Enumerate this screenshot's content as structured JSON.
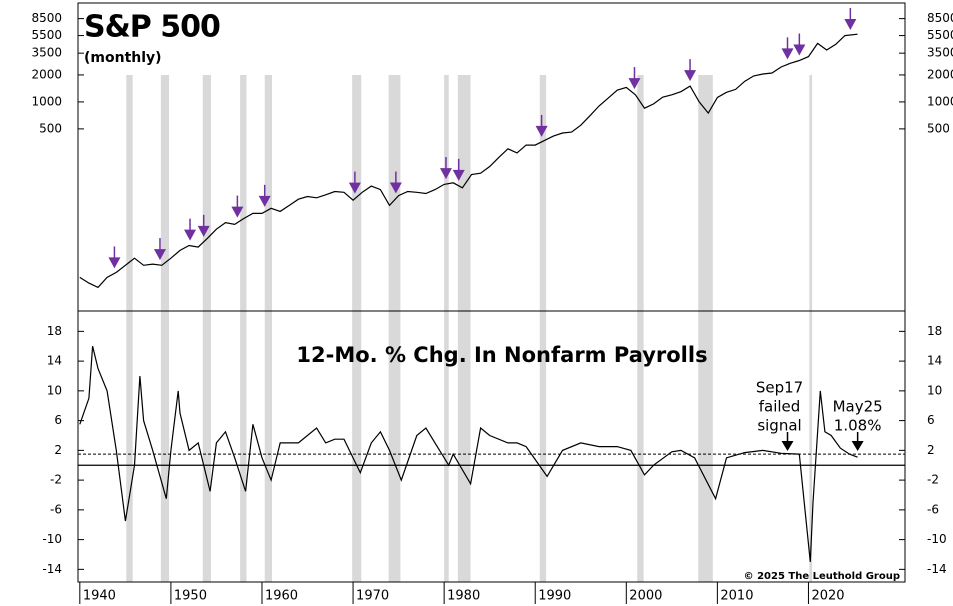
{
  "chart_data": [
    {
      "type": "line",
      "title": "S&P 500",
      "subtitle": "(monthly)",
      "log_scale": true,
      "color": "#000000",
      "x": [
        1940,
        1941,
        1942,
        1943,
        1944,
        1945,
        1946,
        1947,
        1948,
        1949,
        1950,
        1951,
        1952,
        1953,
        1954,
        1955,
        1956,
        1957,
        1958,
        1959,
        1960,
        1961,
        1962,
        1963,
        1964,
        1965,
        1966,
        1967,
        1968,
        1969,
        1970,
        1971,
        1972,
        1973,
        1974,
        1975,
        1976,
        1977,
        1978,
        1979,
        1980,
        1981,
        1982,
        1983,
        1984,
        1985,
        1986,
        1987,
        1988,
        1989,
        1990,
        1991,
        1992,
        1993,
        1994,
        1995,
        1996,
        1997,
        1998,
        1999,
        2000,
        2001,
        2002,
        2003,
        2004,
        2005,
        2006,
        2007,
        2008,
        2009,
        2010,
        2011,
        2012,
        2013,
        2014,
        2015,
        2016,
        2017,
        2018,
        2019,
        2020,
        2021,
        2022,
        2023,
        2024,
        2025.4
      ],
      "values": [
        11,
        9.5,
        8.5,
        11,
        12.5,
        15,
        18,
        15,
        15.5,
        15,
        18,
        22,
        25,
        24,
        30,
        38,
        45,
        43,
        50,
        57,
        57,
        65,
        60,
        70,
        82,
        88,
        85,
        92,
        100,
        98,
        80,
        98,
        115,
        105,
        70,
        90,
        100,
        98,
        95,
        105,
        120,
        125,
        110,
        155,
        160,
        190,
        240,
        300,
        270,
        330,
        330,
        370,
        415,
        450,
        460,
        550,
        700,
        900,
        1100,
        1350,
        1450,
        1200,
        850,
        950,
        1130,
        1200,
        1300,
        1500,
        1000,
        750,
        1120,
        1280,
        1380,
        1700,
        1950,
        2050,
        2100,
        2450,
        2700,
        2900,
        3200,
        4500,
        3800,
        4400,
        5500,
        5700
      ],
      "xlim": [
        1939.8,
        2030.6
      ],
      "ylim": [
        6,
        12700
      ],
      "yticks": [
        500,
        1000,
        2000,
        3500,
        5500,
        8500
      ],
      "signals": {
        "color": "#7030a0",
        "x": [
          1943.8,
          1948.8,
          1952.1,
          1953.6,
          1957.3,
          1960.3,
          1970.2,
          1974.7,
          1980.2,
          1981.6,
          1990.7,
          2000.9,
          2007.0,
          2017.7,
          2019.0,
          2024.6
        ]
      },
      "recessions": {
        "color": "#d9d9d9",
        "periods": [
          [
            1945.1,
            1945.8
          ],
          [
            1948.9,
            1949.8
          ],
          [
            1953.5,
            1954.4
          ],
          [
            1957.6,
            1958.3
          ],
          [
            1960.3,
            1961.1
          ],
          [
            1969.9,
            1970.9
          ],
          [
            1973.9,
            1975.2
          ],
          [
            1980.0,
            1980.5
          ],
          [
            1981.5,
            1982.9
          ],
          [
            1990.5,
            1991.2
          ],
          [
            2001.2,
            2001.9
          ],
          [
            2007.9,
            2009.5
          ],
          [
            2020.1,
            2020.4
          ]
        ]
      }
    },
    {
      "type": "line",
      "title": "12-Mo. % Chg. In Nonfarm Payrolls",
      "color": "#000000",
      "x": [
        1940,
        1941,
        1941.4,
        1942,
        1943,
        1944,
        1945,
        1946,
        1946.6,
        1947,
        1948,
        1949.5,
        1950,
        1950.8,
        1951,
        1952,
        1953,
        1954.3,
        1955,
        1956,
        1957,
        1958.2,
        1959,
        1960,
        1961,
        1962,
        1964,
        1966,
        1967,
        1968,
        1969,
        1970.8,
        1972,
        1973,
        1974,
        1975.3,
        1977,
        1978,
        1979,
        1980.5,
        1981,
        1982.9,
        1984,
        1985,
        1987,
        1988,
        1989,
        1991.3,
        1993,
        1995,
        1997,
        1999,
        2000.5,
        2002,
        2003,
        2005,
        2006,
        2007.5,
        2009.8,
        2011,
        2013,
        2015,
        2017,
        2019,
        2020.2,
        2020.5,
        2021.3,
        2021.8,
        2022.5,
        2023.5,
        2024.5,
        2025.4
      ],
      "values": [
        5.5,
        9,
        16,
        13,
        10,
        2,
        -7.5,
        0,
        12,
        6,
        2,
        -4.5,
        2,
        10,
        7,
        2,
        3,
        -3.5,
        3,
        4.5,
        1,
        -3.5,
        5.5,
        1,
        -2,
        3,
        3,
        5,
        3,
        3.5,
        3.5,
        -1,
        3,
        4.5,
        2,
        -2,
        4,
        5,
        3,
        0,
        1.5,
        -2.5,
        5,
        4,
        3,
        3,
        2.5,
        -1.5,
        2,
        3,
        2.5,
        2.5,
        2,
        -1.3,
        0,
        1.8,
        2,
        1,
        -4.5,
        1,
        1.7,
        2,
        1.6,
        1.5,
        -13,
        -5,
        10,
        4.5,
        4,
        2.3,
        1.5,
        1.08
      ],
      "xlim": [
        1939.8,
        2030.6
      ],
      "ylim": [
        -15.7,
        20.2
      ],
      "yticks": [
        18,
        14,
        10,
        6,
        2,
        -2,
        -6,
        -10,
        -14
      ],
      "xticks": [
        1940,
        1950,
        1960,
        1970,
        1980,
        1990,
        2000,
        2010,
        2020
      ],
      "threshold": 1.5,
      "annotations": [
        {
          "x": 2017.7,
          "lines": [
            "Sep17",
            "failed",
            "signal"
          ]
        },
        {
          "x": 2025.4,
          "lines": [
            "May25",
            "1.08%"
          ]
        }
      ],
      "credit": "© 2025 The Leuthold Group"
    }
  ]
}
